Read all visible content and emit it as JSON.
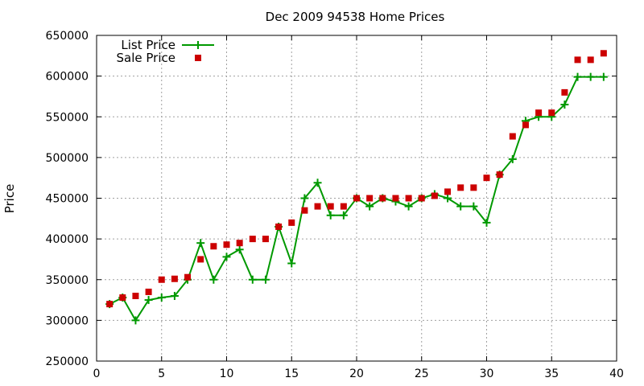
{
  "chart_data": {
    "type": "line",
    "title": "Dec 2009 94538 Home Prices",
    "ylabel": "Price",
    "xlim": [
      0,
      40
    ],
    "ylim": [
      250000,
      650000
    ],
    "x_ticks": [
      "0",
      "5",
      "10",
      "15",
      "20",
      "25",
      "30",
      "35",
      "40"
    ],
    "y_ticks": [
      "250000",
      "300000",
      "350000",
      "400000",
      "450000",
      "500000",
      "550000",
      "600000",
      "650000"
    ],
    "grid": true,
    "legend_position": "top-left",
    "series": [
      {
        "name": "List Price",
        "style": "line+cross",
        "color": "#009900",
        "points": [
          [
            1,
            320000
          ],
          [
            2,
            328000
          ],
          [
            3,
            300000
          ],
          [
            4,
            325000
          ],
          [
            5,
            328000
          ],
          [
            6,
            330000
          ],
          [
            7,
            350000
          ],
          [
            8,
            395000
          ],
          [
            9,
            350000
          ],
          [
            10,
            378000
          ],
          [
            11,
            387000
          ],
          [
            12,
            350000
          ],
          [
            13,
            350000
          ],
          [
            14,
            415000
          ],
          [
            15,
            370000
          ],
          [
            16,
            450000
          ],
          [
            17,
            469000
          ],
          [
            18,
            429000
          ],
          [
            19,
            429000
          ],
          [
            20,
            450000
          ],
          [
            21,
            440000
          ],
          [
            22,
            450000
          ],
          [
            23,
            446000
          ],
          [
            24,
            440000
          ],
          [
            25,
            450000
          ],
          [
            26,
            455000
          ],
          [
            27,
            450000
          ],
          [
            28,
            440000
          ],
          [
            29,
            440000
          ],
          [
            30,
            420000
          ],
          [
            31,
            479000
          ],
          [
            32,
            498000
          ],
          [
            33,
            545000
          ],
          [
            34,
            550000
          ],
          [
            35,
            550000
          ],
          [
            36,
            565000
          ],
          [
            37,
            599000
          ],
          [
            38,
            599000
          ],
          [
            39,
            599000
          ]
        ]
      },
      {
        "name": "Sale Price",
        "style": "square",
        "color": "#cc0000",
        "points": [
          [
            1,
            320000
          ],
          [
            2,
            328000
          ],
          [
            3,
            330000
          ],
          [
            4,
            335000
          ],
          [
            5,
            350000
          ],
          [
            6,
            351000
          ],
          [
            7,
            353000
          ],
          [
            8,
            375000
          ],
          [
            9,
            391000
          ],
          [
            10,
            393000
          ],
          [
            11,
            395000
          ],
          [
            12,
            400000
          ],
          [
            13,
            400000
          ],
          [
            14,
            415000
          ],
          [
            15,
            420000
          ],
          [
            16,
            435000
          ],
          [
            17,
            440000
          ],
          [
            18,
            440000
          ],
          [
            19,
            440000
          ],
          [
            20,
            450000
          ],
          [
            21,
            450000
          ],
          [
            22,
            450000
          ],
          [
            23,
            450000
          ],
          [
            24,
            450000
          ],
          [
            25,
            450000
          ],
          [
            26,
            453000
          ],
          [
            27,
            458000
          ],
          [
            28,
            463000
          ],
          [
            29,
            463000
          ],
          [
            30,
            475000
          ],
          [
            31,
            479000
          ],
          [
            32,
            526000
          ],
          [
            33,
            540000
          ],
          [
            34,
            555000
          ],
          [
            35,
            555000
          ],
          [
            36,
            580000
          ],
          [
            37,
            620000
          ],
          [
            38,
            620000
          ],
          [
            39,
            628000
          ]
        ]
      }
    ]
  }
}
